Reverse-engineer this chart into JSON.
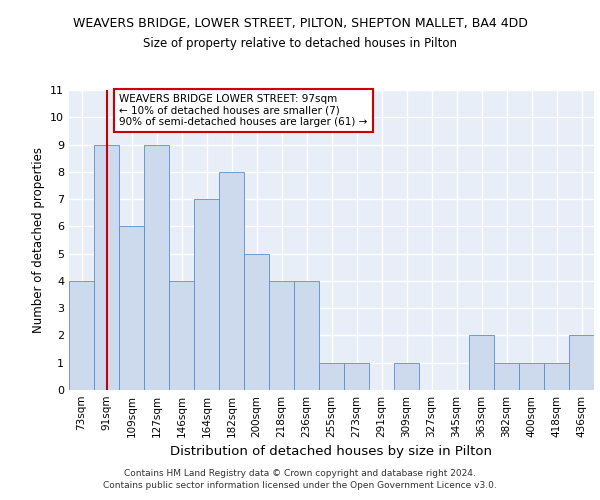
{
  "title1": "WEAVERS BRIDGE, LOWER STREET, PILTON, SHEPTON MALLET, BA4 4DD",
  "title2": "Size of property relative to detached houses in Pilton",
  "xlabel": "Distribution of detached houses by size in Pilton",
  "ylabel": "Number of detached properties",
  "categories": [
    "73sqm",
    "91sqm",
    "109sqm",
    "127sqm",
    "146sqm",
    "164sqm",
    "182sqm",
    "200sqm",
    "218sqm",
    "236sqm",
    "255sqm",
    "273sqm",
    "291sqm",
    "309sqm",
    "327sqm",
    "345sqm",
    "363sqm",
    "382sqm",
    "400sqm",
    "418sqm",
    "436sqm"
  ],
  "values": [
    4,
    9,
    6,
    9,
    4,
    7,
    8,
    5,
    4,
    4,
    1,
    1,
    0,
    1,
    0,
    0,
    2,
    1,
    1,
    1,
    2
  ],
  "bar_color": "#cdd9ed",
  "bar_edge_color": "#5b8dc8",
  "vline_x": 1,
  "vline_color": "#cc0000",
  "annotation_text": "WEAVERS BRIDGE LOWER STREET: 97sqm\n← 10% of detached houses are smaller (7)\n90% of semi-detached houses are larger (61) →",
  "annotation_box_color": "#ffffff",
  "annotation_box_edge": "#cc0000",
  "ylim": [
    0,
    11
  ],
  "yticks": [
    0,
    1,
    2,
    3,
    4,
    5,
    6,
    7,
    8,
    9,
    10,
    11
  ],
  "footer1": "Contains HM Land Registry data © Crown copyright and database right 2024.",
  "footer2": "Contains public sector information licensed under the Open Government Licence v3.0.",
  "bg_color": "#e8eef8",
  "grid_color": "#ffffff"
}
